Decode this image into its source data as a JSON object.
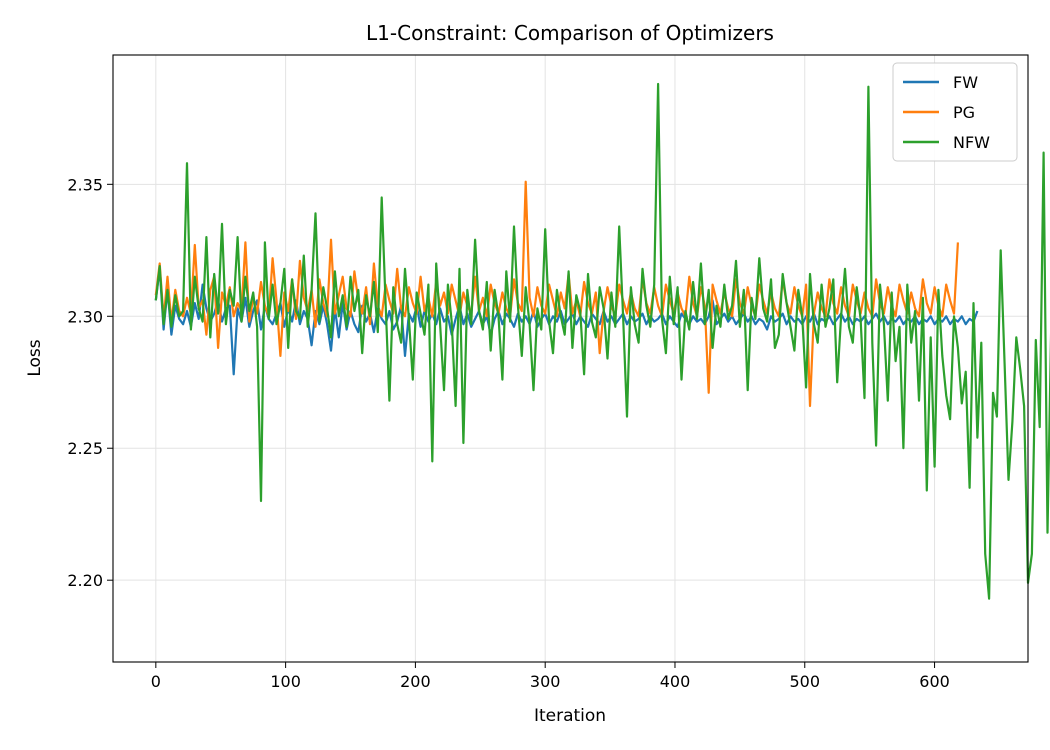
{
  "chart_data": {
    "type": "line",
    "title": "L1-Constraint: Comparison of Optimizers",
    "xlabel": "Iteration",
    "ylabel": "Loss",
    "xlim": [
      -33,
      672
    ],
    "ylim": [
      2.169,
      2.399
    ],
    "x_ticks": [
      0,
      100,
      200,
      300,
      400,
      500,
      600
    ],
    "y_ticks": [
      2.2,
      2.25,
      2.3,
      2.35
    ],
    "y_tick_labels": [
      "2.20",
      "2.25",
      "2.30",
      "2.35"
    ],
    "grid": true,
    "legend_position": "top-right",
    "x_step": 3,
    "series": [
      {
        "name": "FW",
        "color": "#1f77b4",
        "values": [
          2.306,
          2.318,
          2.295,
          2.31,
          2.293,
          2.304,
          2.299,
          2.297,
          2.302,
          2.296,
          2.305,
          2.299,
          2.312,
          2.303,
          2.298,
          2.301,
          2.306,
          2.298,
          2.303,
          2.304,
          2.278,
          2.303,
          2.298,
          2.307,
          2.296,
          2.302,
          2.306,
          2.295,
          2.304,
          2.299,
          2.297,
          2.301,
          2.305,
          2.296,
          2.303,
          2.298,
          2.306,
          2.297,
          2.302,
          2.299,
          2.289,
          2.302,
          2.297,
          2.304,
          2.297,
          2.287,
          2.303,
          2.292,
          2.305,
          2.295,
          2.302,
          2.297,
          2.294,
          2.304,
          2.298,
          2.301,
          2.294,
          2.303,
          2.299,
          2.297,
          2.302,
          2.295,
          2.298,
          2.304,
          2.285,
          2.301,
          2.298,
          2.304,
          2.296,
          2.302,
          2.298,
          2.301,
          2.297,
          2.303,
          2.298,
          2.3,
          2.293,
          2.299,
          2.304,
          2.297,
          2.301,
          2.296,
          2.299,
          2.302,
          2.297,
          2.3,
          2.293,
          2.299,
          2.302,
          2.297,
          2.301,
          2.299,
          2.296,
          2.301,
          2.298,
          2.3,
          2.297,
          2.302,
          2.296,
          2.299,
          2.301,
          2.297,
          2.3,
          2.298,
          2.302,
          2.297,
          2.299,
          2.301,
          2.297,
          2.3,
          2.298,
          2.296,
          2.301,
          2.299,
          2.297,
          2.302,
          2.298,
          2.3,
          2.297,
          2.299,
          2.301,
          2.297,
          2.3,
          2.298,
          2.299,
          2.301,
          2.297,
          2.3,
          2.298,
          2.299,
          2.301,
          2.297,
          2.3,
          2.298,
          2.296,
          2.301,
          2.299,
          2.297,
          2.3,
          2.298,
          2.299,
          2.297,
          2.3,
          2.306,
          2.297,
          2.299,
          2.301,
          2.298,
          2.3,
          2.297,
          2.299,
          2.301,
          2.298,
          2.3,
          2.297,
          2.299,
          2.298,
          2.295,
          2.3,
          2.298,
          2.299,
          2.301,
          2.297,
          2.3,
          2.298,
          2.299,
          2.297,
          2.3,
          2.298,
          2.301,
          2.297,
          2.299,
          2.298,
          2.3,
          2.297,
          2.299,
          2.301,
          2.298,
          2.3,
          2.297,
          2.299,
          2.298,
          2.3,
          2.297,
          2.299,
          2.301,
          2.298,
          2.3,
          2.297,
          2.299,
          2.298,
          2.3,
          2.297,
          2.299,
          2.298,
          2.3,
          2.297,
          2.299,
          2.298,
          2.3,
          2.297,
          2.299,
          2.298,
          2.3,
          2.297,
          2.299,
          2.298,
          2.3,
          2.297,
          2.299,
          2.298,
          2.302
        ]
      },
      {
        "name": "PG",
        "color": "#ff7f0e",
        "values": [
          2.308,
          2.32,
          2.299,
          2.315,
          2.298,
          2.31,
          2.302,
          2.3,
          2.307,
          2.301,
          2.327,
          2.303,
          2.306,
          2.293,
          2.31,
          2.315,
          2.288,
          2.309,
          2.304,
          2.311,
          2.3,
          2.305,
          2.302,
          2.328,
          2.298,
          2.307,
          2.301,
          2.313,
          2.304,
          2.3,
          2.322,
          2.306,
          2.285,
          2.309,
          2.302,
          2.314,
          2.299,
          2.321,
          2.307,
          2.302,
          2.31,
          2.296,
          2.314,
          2.305,
          2.3,
          2.329,
          2.301,
          2.308,
          2.315,
          2.303,
          2.3,
          2.317,
          2.306,
          2.301,
          2.311,
          2.297,
          2.32,
          2.304,
          2.3,
          2.312,
          2.306,
          2.301,
          2.318,
          2.303,
          2.3,
          2.311,
          2.305,
          2.301,
          2.315,
          2.302,
          2.307,
          2.3,
          2.313,
          2.304,
          2.309,
          2.301,
          2.312,
          2.306,
          2.3,
          2.309,
          2.304,
          2.301,
          2.315,
          2.302,
          2.307,
          2.3,
          2.312,
          2.305,
          2.301,
          2.309,
          2.303,
          2.3,
          2.314,
          2.305,
          2.302,
          2.351,
          2.307,
          2.3,
          2.311,
          2.304,
          2.301,
          2.312,
          2.306,
          2.3,
          2.309,
          2.303,
          2.316,
          2.301,
          2.306,
          2.3,
          2.313,
          2.305,
          2.301,
          2.309,
          2.286,
          2.302,
          2.311,
          2.304,
          2.3,
          2.312,
          2.306,
          2.301,
          2.309,
          2.303,
          2.3,
          2.314,
          2.305,
          2.301,
          2.311,
          2.304,
          2.3,
          2.312,
          2.306,
          2.301,
          2.309,
          2.303,
          2.3,
          2.315,
          2.305,
          2.3,
          2.311,
          2.304,
          2.271,
          2.312,
          2.306,
          2.301,
          2.309,
          2.303,
          2.3,
          2.314,
          2.305,
          2.301,
          2.311,
          2.304,
          2.3,
          2.312,
          2.306,
          2.301,
          2.309,
          2.303,
          2.3,
          2.314,
          2.305,
          2.301,
          2.311,
          2.304,
          2.3,
          2.312,
          2.266,
          2.301,
          2.309,
          2.303,
          2.3,
          2.314,
          2.305,
          2.301,
          2.311,
          2.304,
          2.3,
          2.312,
          2.306,
          2.301,
          2.309,
          2.303,
          2.3,
          2.314,
          2.305,
          2.301,
          2.311,
          2.304,
          2.3,
          2.312,
          2.306,
          2.301,
          2.309,
          2.303,
          2.3,
          2.314,
          2.305,
          2.301,
          2.311,
          2.304,
          2.3,
          2.312,
          2.306,
          2.301,
          2.328
        ]
      },
      {
        "name": "NFW",
        "color": "#2ca02c",
        "values": [
          2.306,
          2.319,
          2.297,
          2.31,
          2.296,
          2.308,
          2.3,
          2.302,
          2.358,
          2.295,
          2.315,
          2.303,
          2.298,
          2.33,
          2.292,
          2.316,
          2.301,
          2.335,
          2.297,
          2.31,
          2.304,
          2.33,
          2.298,
          2.315,
          2.302,
          2.309,
          2.296,
          2.23,
          2.328,
          2.299,
          2.312,
          2.297,
          2.305,
          2.318,
          2.288,
          2.314,
          2.302,
          2.299,
          2.323,
          2.296,
          2.31,
          2.339,
          2.298,
          2.311,
          2.303,
          2.292,
          2.317,
          2.3,
          2.308,
          2.296,
          2.315,
          2.302,
          2.31,
          2.286,
          2.308,
          2.3,
          2.313,
          2.294,
          2.345,
          2.305,
          2.268,
          2.311,
          2.297,
          2.29,
          2.318,
          2.299,
          2.276,
          2.309,
          2.301,
          2.293,
          2.312,
          2.245,
          2.32,
          2.297,
          2.272,
          2.312,
          2.298,
          2.266,
          2.318,
          2.252,
          2.31,
          2.297,
          2.329,
          2.302,
          2.295,
          2.313,
          2.287,
          2.31,
          2.3,
          2.276,
          2.317,
          2.298,
          2.334,
          2.304,
          2.285,
          2.311,
          2.297,
          2.272,
          2.303,
          2.295,
          2.333,
          2.298,
          2.286,
          2.31,
          2.3,
          2.293,
          2.317,
          2.288,
          2.308,
          2.302,
          2.278,
          2.316,
          2.298,
          2.292,
          2.311,
          2.303,
          2.284,
          2.309,
          2.296,
          2.334,
          2.3,
          2.262,
          2.311,
          2.297,
          2.29,
          2.318,
          2.304,
          2.296,
          2.312,
          2.388,
          2.299,
          2.286,
          2.315,
          2.297,
          2.311,
          2.276,
          2.302,
          2.295,
          2.313,
          2.299,
          2.32,
          2.297,
          2.31,
          2.288,
          2.304,
          2.296,
          2.312,
          2.299,
          2.304,
          2.321,
          2.296,
          2.31,
          2.272,
          2.307,
          2.299,
          2.322,
          2.303,
          2.298,
          2.314,
          2.288,
          2.293,
          2.316,
          2.305,
          2.296,
          2.287,
          2.31,
          2.3,
          2.273,
          2.316,
          2.297,
          2.29,
          2.312,
          2.296,
          2.303,
          2.314,
          2.275,
          2.3,
          2.318,
          2.296,
          2.29,
          2.311,
          2.299,
          2.269,
          2.387,
          2.29,
          2.251,
          2.312,
          2.297,
          2.268,
          2.309,
          2.283,
          2.296,
          2.25,
          2.312,
          2.29,
          2.302,
          2.268,
          2.307,
          2.234,
          2.292,
          2.243,
          2.31,
          2.285,
          2.27,
          2.261,
          2.3,
          2.288,
          2.267,
          2.279,
          2.235,
          2.305,
          2.254,
          2.29,
          2.21,
          2.193,
          2.271,
          2.262,
          2.325,
          2.282,
          2.238,
          2.26,
          2.292,
          2.28,
          2.266,
          2.199,
          2.21,
          2.291,
          2.258,
          2.362,
          2.218,
          2.3,
          2.287,
          2.268,
          2.233,
          2.276,
          2.295,
          2.24,
          2.27,
          2.22,
          2.3,
          2.264,
          2.282,
          2.251,
          2.264,
          2.278,
          2.252,
          2.284,
          2.272,
          2.206,
          2.244,
          2.304,
          2.267,
          2.228,
          2.29,
          2.27,
          2.242,
          2.193,
          2.186,
          2.283,
          2.278,
          2.264,
          2.234,
          2.306,
          2.229,
          2.331,
          2.26,
          2.236,
          2.327,
          2.28,
          2.274,
          2.243,
          2.312,
          2.263,
          2.236,
          2.323,
          2.248,
          2.289,
          2.223,
          2.308,
          2.253,
          2.281,
          2.264,
          2.314,
          2.247,
          2.273,
          2.27,
          2.287,
          2.267,
          2.282,
          2.17
        ]
      }
    ]
  }
}
